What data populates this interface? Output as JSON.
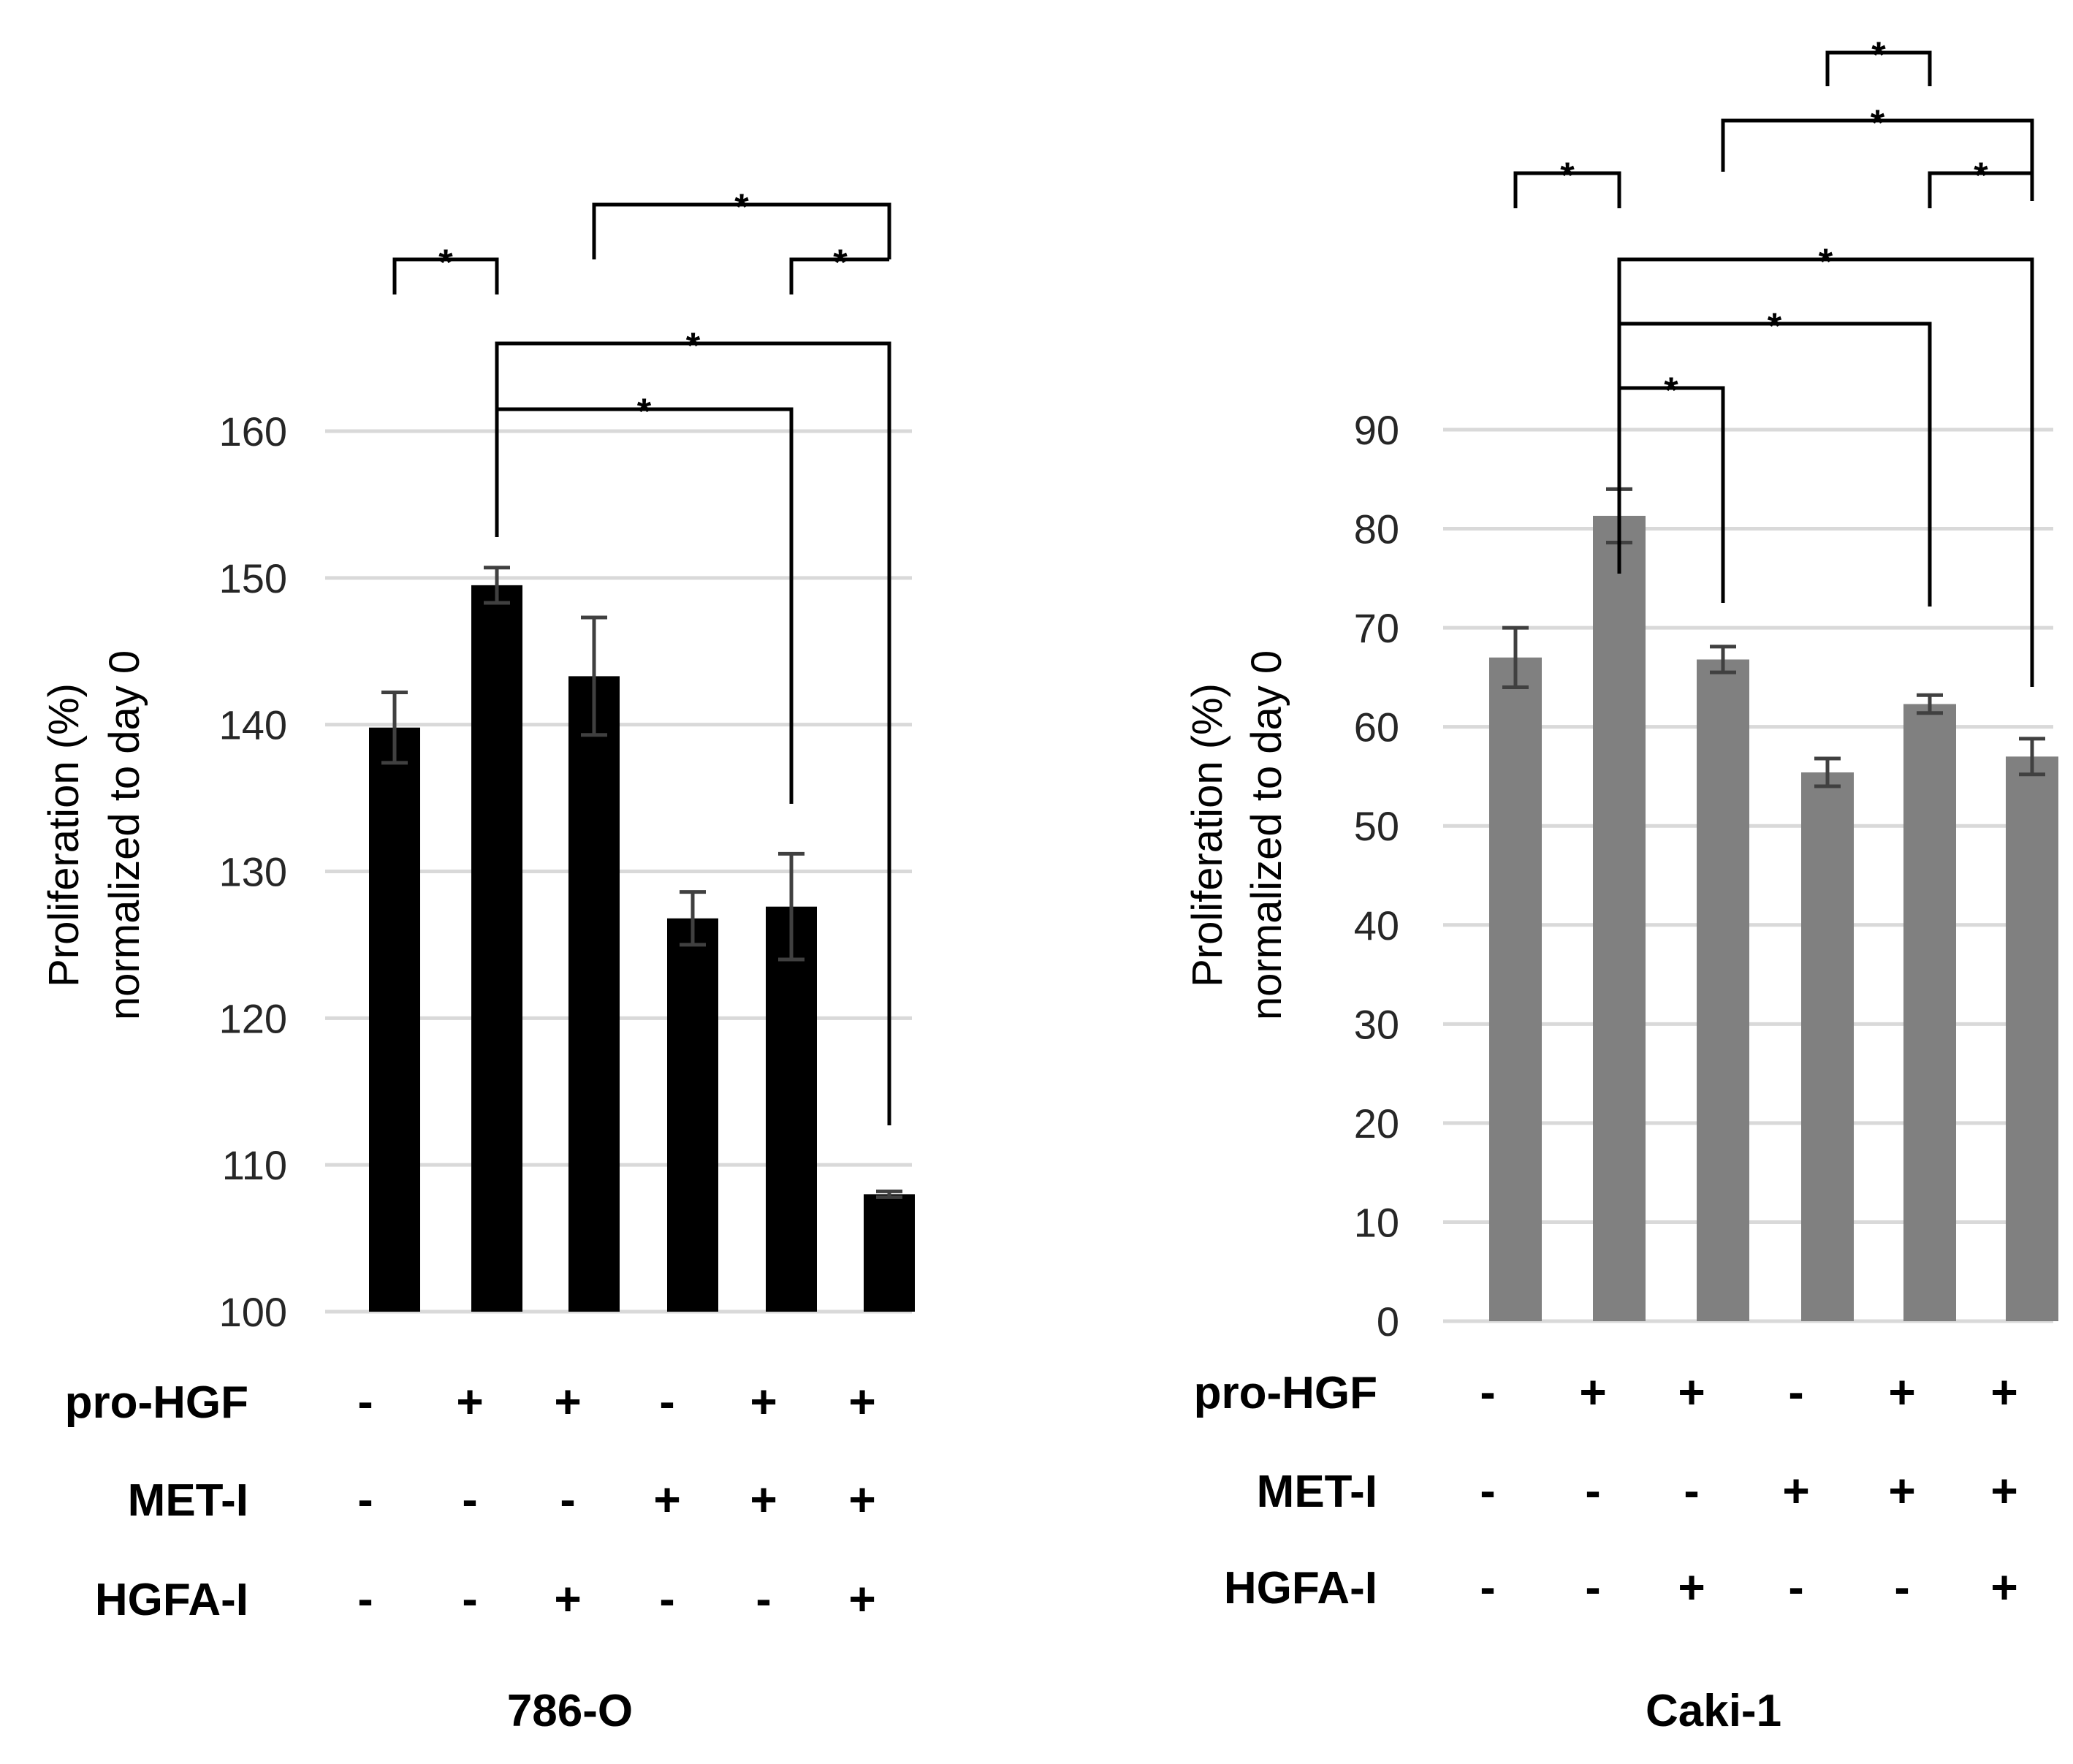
{
  "chart_data": [
    {
      "type": "bar",
      "title": "786-O",
      "ylabel_lines": [
        "Proliferation (%)",
        "normalized to day 0"
      ],
      "ylim": [
        100,
        160
      ],
      "yticks": [
        100,
        110,
        120,
        130,
        140,
        150,
        160
      ],
      "bar_color": "#000000",
      "values": [
        139.8,
        149.5,
        143.3,
        126.8,
        127.6,
        108.0
      ],
      "errors": [
        2.4,
        1.2,
        4.0,
        1.8,
        3.6,
        0.2
      ],
      "conditions": [
        {
          "label": "pro-HGF",
          "signs": [
            "-",
            "+",
            "+",
            "-",
            "+",
            "+"
          ]
        },
        {
          "label": "MET-I",
          "signs": [
            "-",
            "-",
            "-",
            "+",
            "+",
            "+"
          ]
        },
        {
          "label": "HGFA-I",
          "signs": [
            "-",
            "-",
            "+",
            "-",
            "-",
            "+"
          ]
        }
      ],
      "significance": [
        {
          "from": 1,
          "to": 2,
          "label": "*"
        },
        {
          "from": 3,
          "to": 6,
          "label": "*"
        },
        {
          "from": 5,
          "to": 6,
          "label": "*"
        },
        {
          "from": 2,
          "to": 6,
          "label": "*"
        },
        {
          "from": 2,
          "to": 5,
          "label": "*"
        }
      ]
    },
    {
      "type": "bar",
      "title": "Caki-1",
      "ylabel_lines": [
        "Proliferation (%)",
        "normalized to day 0"
      ],
      "ylim": [
        0,
        90
      ],
      "yticks": [
        0,
        10,
        20,
        30,
        40,
        50,
        60,
        70,
        80,
        90
      ],
      "bar_color": "#808080",
      "values": [
        67.0,
        81.3,
        66.8,
        55.4,
        62.3,
        57.0
      ],
      "errors": [
        3.0,
        2.7,
        1.3,
        1.4,
        0.9,
        1.8
      ],
      "conditions": [
        {
          "label": "pro-HGF",
          "signs": [
            "-",
            "+",
            "+",
            "-",
            "+",
            "+"
          ]
        },
        {
          "label": "MET-I",
          "signs": [
            "-",
            "-",
            "-",
            "+",
            "+",
            "+"
          ]
        },
        {
          "label": "HGFA-I",
          "signs": [
            "-",
            "-",
            "+",
            "-",
            "-",
            "+"
          ]
        }
      ],
      "significance": [
        {
          "from": 4,
          "to": 5,
          "label": "*"
        },
        {
          "from": 3,
          "to": 6,
          "label": "*"
        },
        {
          "from": 1,
          "to": 2,
          "label": "*"
        },
        {
          "from": 5,
          "to": 6,
          "label": "*"
        },
        {
          "from": 2,
          "to": 6,
          "label": "*"
        },
        {
          "from": 2,
          "to": 5,
          "label": "*"
        },
        {
          "from": 2,
          "to": 3,
          "label": "*"
        }
      ]
    }
  ]
}
